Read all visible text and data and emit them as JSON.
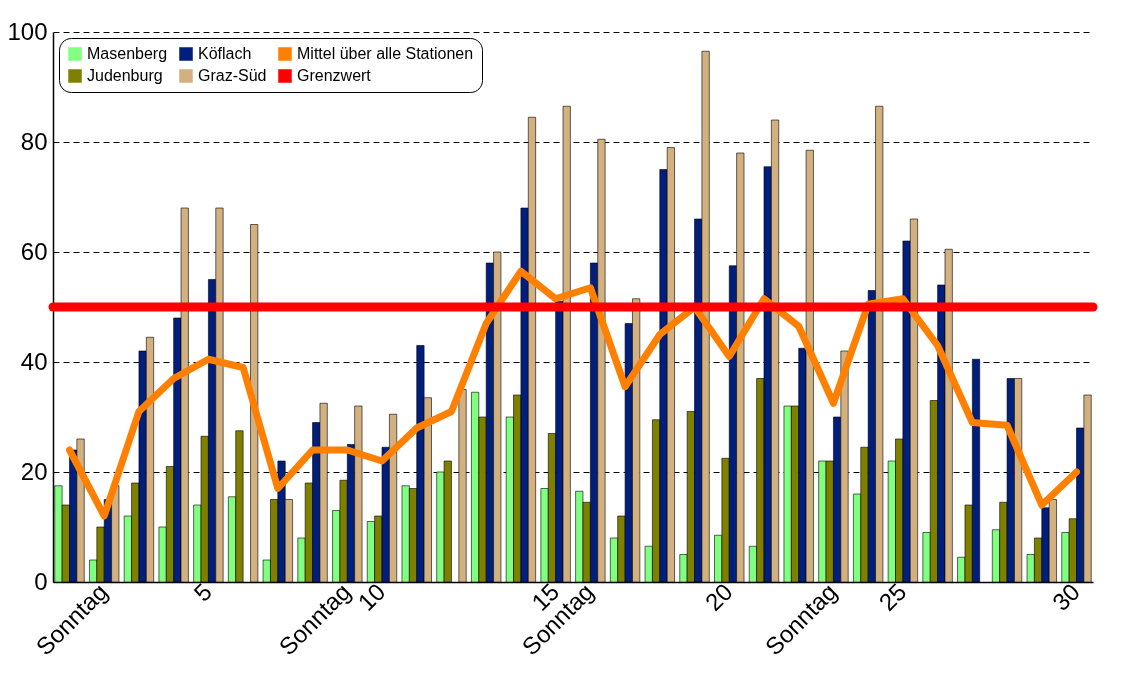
{
  "chart_data": {
    "type": "bar",
    "categories": [
      null,
      "Sonntag",
      null,
      null,
      "5",
      null,
      null,
      null,
      "Sonntag",
      "10",
      null,
      null,
      null,
      null,
      "15",
      "Sonntag",
      null,
      null,
      null,
      "20",
      null,
      null,
      "Sonntag",
      null,
      "25",
      null,
      null,
      null,
      null,
      "30"
    ],
    "series": [
      {
        "name": "Masenberg",
        "color": "#80ff80",
        "values": [
          17.5,
          4,
          12,
          10,
          14,
          15.5,
          4,
          8,
          13,
          11,
          17.5,
          20,
          34.5,
          30,
          17,
          16.5,
          8,
          6.5,
          5,
          8.5,
          6.5,
          32,
          22,
          16,
          22,
          9,
          4.5,
          9.5,
          5,
          9
        ]
      },
      {
        "name": "Judenburg",
        "color": "#808000",
        "values": [
          14,
          10,
          18,
          21,
          26.5,
          27.5,
          15,
          18,
          18.5,
          12,
          17,
          22,
          30,
          34,
          27,
          14.5,
          12,
          29.5,
          31,
          22.5,
          37,
          32,
          22,
          24.5,
          26,
          33,
          14,
          14.5,
          8,
          11.5
        ]
      },
      {
        "name": "Köflach",
        "color": "#001e7c",
        "values": [
          24,
          15,
          42,
          48,
          55,
          null,
          22,
          29,
          25,
          24.5,
          43,
          null,
          58,
          68,
          51,
          58,
          47,
          75,
          66,
          57.5,
          75.5,
          42.5,
          30,
          53,
          62,
          54,
          40.5,
          37,
          13.5,
          28
        ]
      },
      {
        "name": "Graz-Süd",
        "color": "#d2b080",
        "values": [
          26,
          17.5,
          44.5,
          68,
          68,
          65,
          15,
          32.5,
          32,
          30.5,
          33.5,
          35,
          60,
          84.5,
          86.5,
          80.5,
          51.5,
          79,
          96.5,
          78,
          84,
          78.5,
          42,
          86.5,
          66,
          60.5,
          null,
          37,
          15,
          34
        ]
      },
      {
        "name": "Mittel über alle Stationen",
        "type": "line",
        "color": "#ff8000",
        "values": [
          24,
          12,
          31,
          37,
          40.5,
          39,
          17,
          24,
          24,
          22,
          28,
          31,
          47,
          56.5,
          51.5,
          53.5,
          35.5,
          45,
          50,
          41,
          51.5,
          46.5,
          32.5,
          50.5,
          51.5,
          43,
          29,
          28.5,
          14,
          20
        ]
      }
    ],
    "ref_lines": [
      {
        "axis": "y",
        "value": 50,
        "label": "Grenzwert",
        "color": "#ff0000"
      }
    ],
    "ylim": [
      0,
      100
    ],
    "yticks": [
      0,
      20,
      40,
      60,
      80,
      100
    ],
    "grid": "y",
    "legend": "top left",
    "marker": "none",
    "line_style": "solid"
  }
}
